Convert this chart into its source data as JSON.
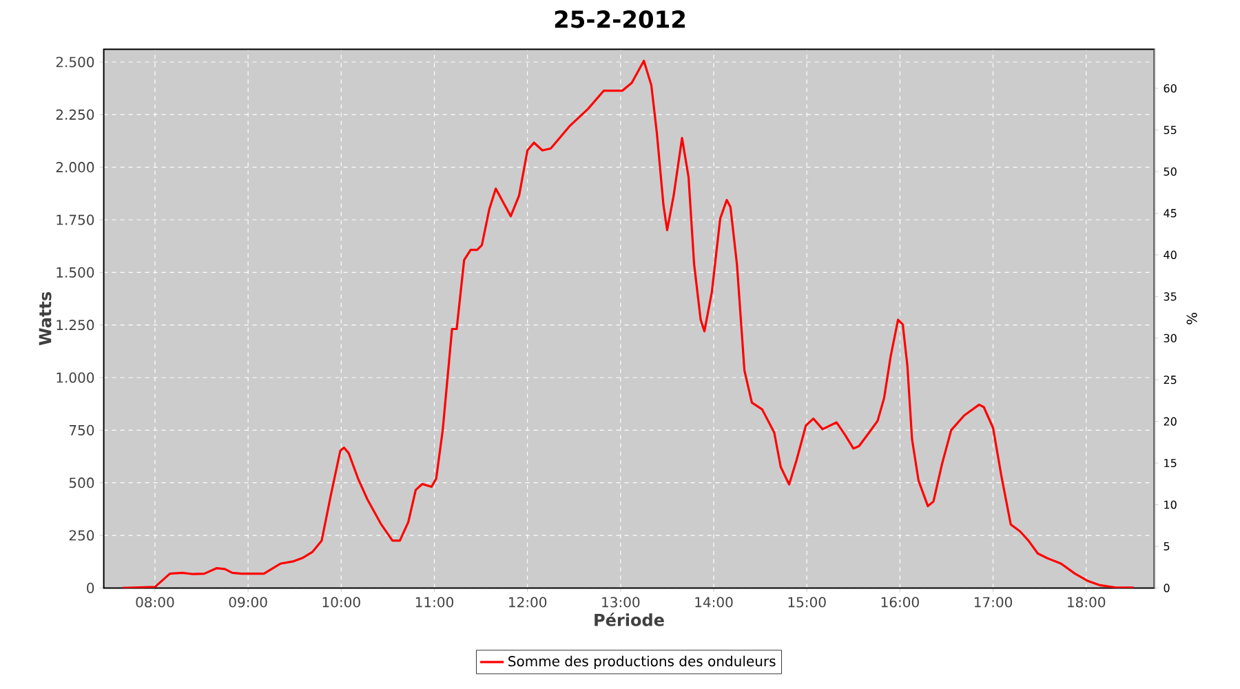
{
  "chart_data": {
    "type": "line",
    "title": "25-2-2012",
    "xlabel": "Période",
    "ylabel": "Watts",
    "y2label": "%",
    "xlim": [
      7.45,
      18.73
    ],
    "xticks": [
      {
        "value": 8,
        "label": "08:00"
      },
      {
        "value": 9,
        "label": "09:00"
      },
      {
        "value": 10,
        "label": "10:00"
      },
      {
        "value": 11,
        "label": "11:00"
      },
      {
        "value": 12,
        "label": "12:00"
      },
      {
        "value": 13,
        "label": "13:00"
      },
      {
        "value": 14,
        "label": "14:00"
      },
      {
        "value": 15,
        "label": "15:00"
      },
      {
        "value": 16,
        "label": "16:00"
      },
      {
        "value": 17,
        "label": "17:00"
      },
      {
        "value": 18,
        "label": "18:00"
      }
    ],
    "ylim": [
      0,
      2561
    ],
    "yticks": [
      0,
      250,
      500,
      750,
      {
        "value": 1000,
        "label": "1.000"
      },
      {
        "value": 1250,
        "label": "1.250"
      },
      {
        "value": 1500,
        "label": "1.500"
      },
      {
        "value": 1750,
        "label": "1.750"
      },
      {
        "value": 2000,
        "label": "2.000"
      },
      {
        "value": 2250,
        "label": "2.250"
      },
      {
        "value": 2500,
        "label": "2.500"
      }
    ],
    "y2lim": [
      0,
      64.7
    ],
    "y2ticks": [
      0,
      5,
      10,
      15,
      20,
      25,
      30,
      35,
      40,
      45,
      50,
      55,
      60
    ],
    "grid": true,
    "legend": "bottom",
    "marker": "none",
    "line_style": "solid",
    "series": [
      {
        "name": "Somme des productions des onduleurs",
        "color": "#ff0000",
        "x": [
          7.65,
          8.0,
          8.16,
          8.29,
          8.41,
          8.53,
          8.66,
          8.75,
          8.83,
          8.93,
          9.17,
          9.35,
          9.49,
          9.59,
          9.69,
          9.79,
          9.89,
          9.99,
          10.03,
          10.08,
          10.18,
          10.28,
          10.43,
          10.55,
          10.63,
          10.72,
          10.8,
          10.87,
          10.97,
          11.02,
          11.09,
          11.19,
          11.24,
          11.32,
          11.39,
          11.46,
          11.51,
          11.59,
          11.66,
          11.82,
          11.91,
          12.0,
          12.07,
          12.16,
          12.25,
          12.45,
          12.65,
          12.82,
          13.02,
          13.12,
          13.25,
          13.33,
          13.39,
          13.46,
          13.5,
          13.57,
          13.66,
          13.73,
          13.79,
          13.86,
          13.9,
          13.98,
          14.07,
          14.14,
          14.18,
          14.25,
          14.33,
          14.41,
          14.52,
          14.65,
          14.72,
          14.81,
          14.89,
          14.99,
          15.07,
          15.17,
          15.32,
          15.41,
          15.5,
          15.56,
          15.66,
          15.76,
          15.83,
          15.9,
          15.98,
          16.03,
          16.08,
          16.13,
          16.2,
          16.3,
          16.36,
          16.45,
          16.55,
          16.69,
          16.85,
          16.9,
          17.0,
          17.09,
          17.19,
          17.29,
          17.38,
          17.48,
          17.58,
          17.73,
          17.88,
          18.02,
          18.15,
          18.32,
          18.51
        ],
        "values": [
          0,
          5,
          68,
          72,
          66,
          68,
          94,
          90,
          72,
          68,
          68,
          116,
          127,
          144,
          171,
          225,
          444,
          652,
          667,
          641,
          521,
          422,
          302,
          225,
          225,
          313,
          466,
          494,
          481,
          520,
          750,
          1231,
          1231,
          1559,
          1607,
          1607,
          1629,
          1800,
          1898,
          1767,
          1865,
          2080,
          2117,
          2080,
          2089,
          2194,
          2277,
          2364,
          2364,
          2401,
          2506,
          2390,
          2161,
          1822,
          1701,
          1865,
          2139,
          1953,
          1537,
          1275,
          1220,
          1406,
          1756,
          1844,
          1811,
          1537,
          1034,
          881,
          849,
          739,
          575,
          492,
          608,
          772,
          805,
          755,
          787,
          728,
          663,
          674,
          733,
          794,
          903,
          1100,
          1275,
          1253,
          1056,
          707,
          510,
          389,
          411,
          586,
          750,
          820,
          871,
          860,
          761,
          531,
          302,
          269,
          225,
          164,
          142,
          116,
          68,
          33,
          13,
          2,
          2
        ]
      }
    ]
  }
}
